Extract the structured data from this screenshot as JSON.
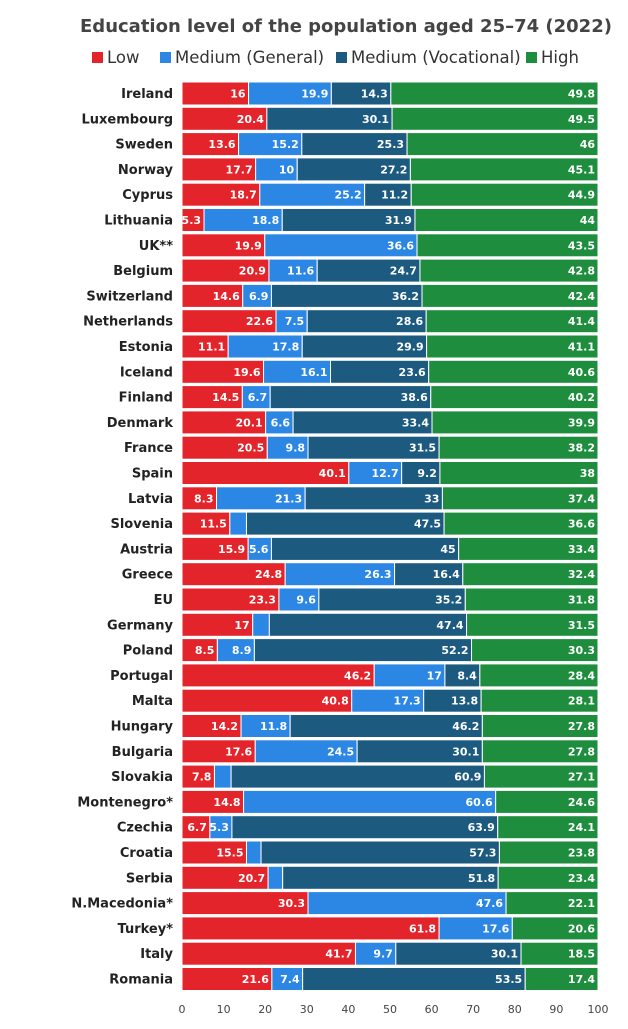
{
  "chart_data": {
    "type": "bar",
    "orientation": "horizontal",
    "stacked": true,
    "title": "Education level of the population aged 25–74 (2022)",
    "xlim": [
      0,
      100
    ],
    "x_ticks": [
      "0",
      "10",
      "20",
      "30",
      "40",
      "50",
      "60",
      "70",
      "80",
      "90",
      "100"
    ],
    "legend_position": "top",
    "grid": false,
    "categories": [
      "Ireland",
      "Luxembourg",
      "Sweden",
      "Norway",
      "Cyprus",
      "Lithuania",
      "UK**",
      "Belgium",
      "Switzerland",
      "Netherlands",
      "Estonia",
      "Iceland",
      "Finland",
      "Denmark",
      "France",
      "Spain",
      "Latvia",
      "Slovenia",
      "Austria",
      "Greece",
      "EU",
      "Germany",
      "Poland",
      "Portugal",
      "Malta",
      "Hungary",
      "Bulgaria",
      "Slovakia",
      "Montenegro*",
      "Czechia",
      "Croatia",
      "Serbia",
      "N.Macedonia*",
      "Turkey*",
      "Italy",
      "Romania"
    ],
    "series": [
      {
        "name": "Low",
        "color": "#e3242b",
        "values": [
          16,
          20.4,
          13.6,
          17.7,
          18.7,
          5.3,
          19.9,
          20.9,
          14.6,
          22.6,
          11.1,
          19.6,
          14.5,
          20.1,
          20.5,
          40.1,
          8.3,
          11.5,
          15.9,
          24.8,
          23.3,
          17,
          8.5,
          46.2,
          40.8,
          14.2,
          17.6,
          7.8,
          14.8,
          6.7,
          15.5,
          20.7,
          30.3,
          61.8,
          41.7,
          21.6
        ],
        "labels": [
          "16",
          "20.4",
          "13.6",
          "17.7",
          "18.7",
          "5.3",
          "19.9",
          "20.9",
          "14.6",
          "22.6",
          "11.1",
          "19.6",
          "14.5",
          "20.1",
          "20.5",
          "40.1",
          "8.3",
          "11.5",
          "15.9",
          "24.8",
          "23.3",
          "17",
          "8.5",
          "46.2",
          "40.8",
          "14.2",
          "17.6",
          "7.8",
          "14.8",
          "6.7",
          "15.5",
          "20.7",
          "30.3",
          "61.8",
          "41.7",
          "21.6"
        ]
      },
      {
        "name": "Medium (General)",
        "color": "#2b87e3",
        "values": [
          19.9,
          0,
          15.2,
          10,
          25.2,
          18.8,
          36.6,
          11.6,
          6.9,
          7.5,
          17.8,
          16.1,
          6.7,
          6.6,
          9.8,
          12.7,
          21.3,
          4.0,
          5.6,
          26.3,
          9.6,
          4.0,
          8.9,
          17,
          17.3,
          11.8,
          24.5,
          4.0,
          60.6,
          5.3,
          3.5,
          3.5,
          47.6,
          17.6,
          9.7,
          7.4
        ],
        "labels": [
          "19.9",
          "",
          "15.2",
          "10",
          "25.2",
          "18.8",
          "36.6",
          "11.6",
          "6.9",
          "7.5",
          "17.8",
          "16.1",
          "6.7",
          "6.6",
          "9.8",
          "12.7",
          "21.3",
          "",
          "5.6",
          "26.3",
          "9.6",
          "",
          "8.9",
          "17",
          "17.3",
          "11.8",
          "24.5",
          "",
          "60.6",
          "5.3",
          "",
          "",
          "47.6",
          "17.6",
          "9.7",
          "7.4"
        ]
      },
      {
        "name": "Medium (Vocational)",
        "color": "#1c5a80",
        "values": [
          14.3,
          30.1,
          25.3,
          27.2,
          11.2,
          31.9,
          0,
          24.7,
          36.2,
          28.6,
          29.9,
          23.6,
          38.6,
          33.4,
          31.5,
          9.2,
          33,
          47.5,
          45,
          16.4,
          35.2,
          47.4,
          52.2,
          8.4,
          13.8,
          46.2,
          30.1,
          60.9,
          0,
          63.9,
          57.3,
          51.8,
          0,
          0,
          30.1,
          53.5
        ],
        "labels": [
          "14.3",
          "30.1",
          "25.3",
          "27.2",
          "11.2",
          "31.9",
          "",
          "24.7",
          "36.2",
          "28.6",
          "29.9",
          "23.6",
          "38.6",
          "33.4",
          "31.5",
          "9.2",
          "33",
          "47.5",
          "45",
          "16.4",
          "35.2",
          "47.4",
          "52.2",
          "8.4",
          "13.8",
          "46.2",
          "30.1",
          "60.9",
          "",
          "63.9",
          "57.3",
          "51.8",
          "",
          "",
          "30.1",
          "53.5"
        ]
      },
      {
        "name": "High",
        "color": "#1e8e3e",
        "values": [
          49.8,
          49.5,
          46,
          45.1,
          44.9,
          44,
          43.5,
          42.8,
          42.4,
          41.4,
          41.1,
          40.6,
          40.2,
          39.9,
          38.2,
          38,
          37.4,
          36.6,
          33.4,
          32.4,
          31.8,
          31.5,
          30.3,
          28.4,
          28.1,
          27.8,
          27.8,
          27.1,
          24.6,
          24.1,
          23.8,
          23.4,
          22.1,
          20.6,
          18.5,
          17.4
        ],
        "labels": [
          "49.8",
          "49.5",
          "46",
          "45.1",
          "44.9",
          "44",
          "43.5",
          "42.8",
          "42.4",
          "41.4",
          "41.1",
          "40.6",
          "40.2",
          "39.9",
          "38.2",
          "38",
          "37.4",
          "36.6",
          "33.4",
          "32.4",
          "31.8",
          "31.5",
          "30.3",
          "28.4",
          "28.1",
          "27.8",
          "27.8",
          "27.1",
          "24.6",
          "24.1",
          "23.8",
          "23.4",
          "22.1",
          "20.6",
          "18.5",
          "17.4"
        ]
      }
    ]
  }
}
